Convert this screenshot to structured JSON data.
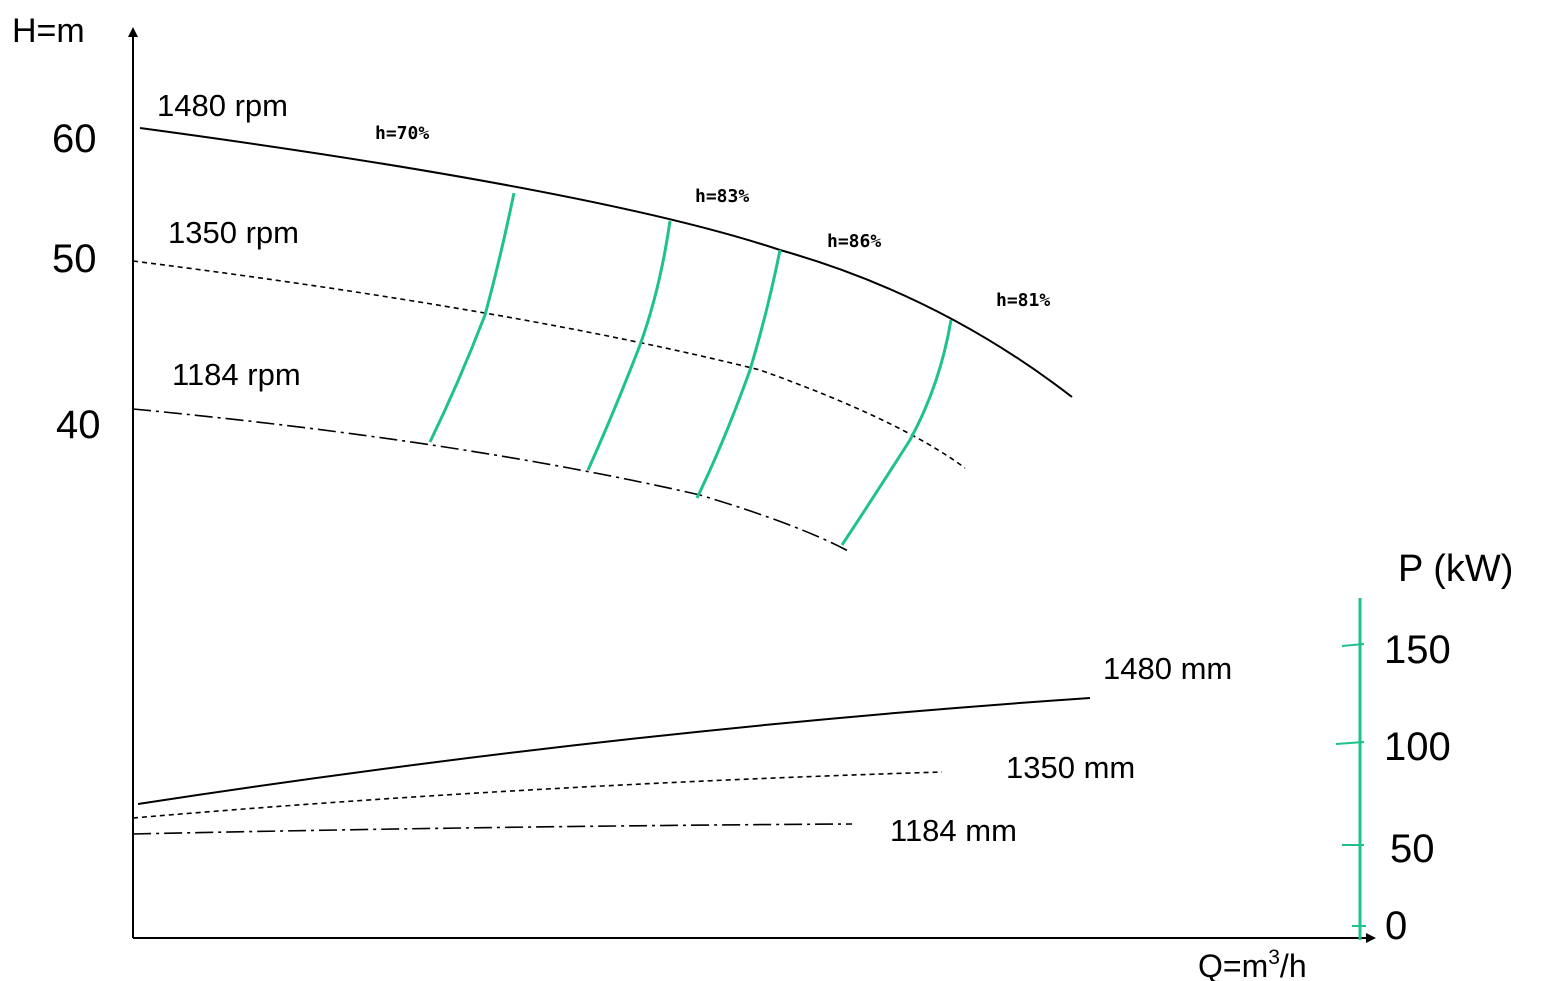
{
  "chart_data": {
    "type": "line",
    "title": "",
    "colors": {
      "axis": "#000000",
      "efficiency": "#1fc28f",
      "power_axis": "#1fc28f"
    },
    "head_axis": {
      "label": "H=m",
      "ticks": [
        "60",
        "50",
        "40"
      ]
    },
    "flow_axis": {
      "label_prefix": "Q=m",
      "label_sup": "3",
      "label_suffix": "/h"
    },
    "power_axis": {
      "label": "P (kW)",
      "ticks": [
        "150",
        "100",
        "50",
        "0"
      ]
    },
    "head_curves": [
      {
        "name": "1480 rpm",
        "style": "solid"
      },
      {
        "name": "1350 rpm",
        "style": "dashed"
      },
      {
        "name": "1184 rpm",
        "style": "dashdot"
      }
    ],
    "efficiency_curves": [
      {
        "name": "h=70%"
      },
      {
        "name": "h=83%"
      },
      {
        "name": "h=86%"
      },
      {
        "name": "h=81%"
      }
    ],
    "power_curves": [
      {
        "name": "1480 mm",
        "style": "solid"
      },
      {
        "name": "1350 mm",
        "style": "dashed"
      },
      {
        "name": "1184 mm",
        "style": "dashdot"
      }
    ]
  }
}
